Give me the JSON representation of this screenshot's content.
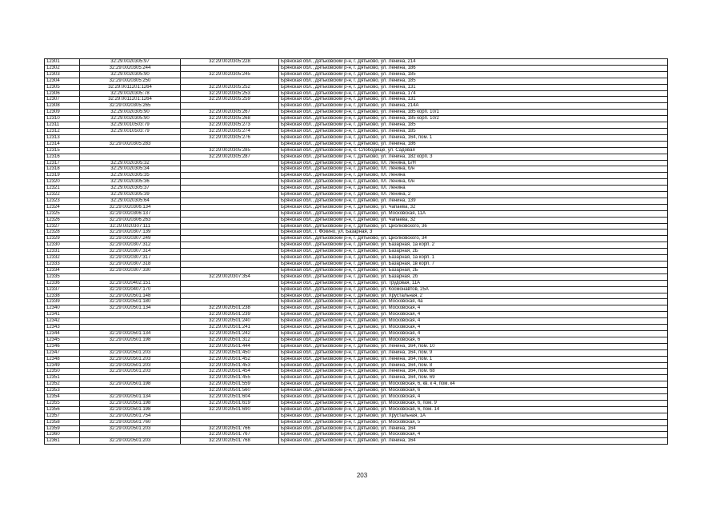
{
  "page_number": "203",
  "rows": [
    [
      "12301",
      "32:29:0020305:97",
      "32:29:0020305:228",
      "Брянская обл., Дятьковский р-н, г. Дятьково, ул. Ленина, 214"
    ],
    [
      "12302",
      "32:29:0020305:244",
      "",
      "Брянская обл., Дятьковский р-н, г. Дятьково, ул. Ленина, 186"
    ],
    [
      "12303",
      "32:29:0020305:90",
      "32:29:0020305:245",
      "Брянская обл., Дятьковский р-н, г. Дятьково, ул. Ленина, 185"
    ],
    [
      "12304",
      "32:29:0020305:250",
      "",
      "Брянская обл., Дятьковский р-н, г. Дятьково, ул. Ленина, 185"
    ],
    [
      "12305",
      "32:29:0011201:1264",
      "32:29:0020305:252",
      "Брянская обл., Дятьковский р-н, г. Дятьково, ул. Ленина, 131"
    ],
    [
      "12306",
      "32:29:0020305:78",
      "32:29:0020305:253",
      "Брянская обл., Дятьковский р-н, г. Дятьково, ул. Ленина, 174"
    ],
    [
      "12307",
      "32:29:0011201:1264",
      "32:29:0020305:259",
      "Брянская обл., Дятьковский р-н, г. Дятьково, ул. Ленина, 131"
    ],
    [
      "12308",
      "32:29:0020305:265",
      "",
      "Брянская обл., Дятьковский р-н, г. Дятьково, ул. Ленина, 214А"
    ],
    [
      "12309",
      "32:29:0020305:90",
      "32:29:0020305:267",
      "Брянская обл., Дятьковский р-н, г. Дятьково, ул. Ленина, 185 корп. 10/1"
    ],
    [
      "12310",
      "32:29:0020305:90",
      "32:29:0020305:268",
      "Брянская обл., Дятьковский р-н, г. Дятьково, ул. Ленина, 185 корп. 10/2"
    ],
    [
      "12311",
      "32:29:0010503:79",
      "32:29:0020305:273",
      "Брянская обл., Дятьковский р-н, г. Дятьково, ул. Ленина, 185"
    ],
    [
      "12312",
      "32:29:0010503:79",
      "32:29:0020305:274",
      "Брянская обл., Дятьковский р-н, г. Дятьково, ул. Ленина, 185"
    ],
    [
      "12313",
      "",
      "32:29:0020305:276",
      "Брянская обл., Дятьковский р-н, г. Дятьково, ул. Ленина, 164, пом. 1"
    ],
    [
      "12314",
      "32:29:0020305:283",
      "",
      "Брянская обл., Дятьковский р-н, г. Дятьково, ул. Ленина, 186"
    ],
    [
      "12315",
      "",
      "32:29:0020305:285",
      "Брянская обл., Дятьковский р-н, с. Слободище, ул. Садовая"
    ],
    [
      "12316",
      "",
      "32:29:0020305:287",
      "Брянская обл., Дятьковский р-н, г. Дятьково, ул. Ленина, 182 корп. 3"
    ],
    [
      "12317",
      "32:29:0020305:32",
      "",
      "Брянская обл., Дятьковский р-н, г. Дятьково, пл. Ленина, Б/Н"
    ],
    [
      "12318",
      "32:29:0020305:34",
      "",
      "Брянская обл., Дятьковский р-н, г. Дятьково, пл. Ленина, б/н"
    ],
    [
      "12319",
      "32:29:0020305:35",
      "",
      "Брянская обл., Дятьковский р-н, г. Дятьково, пл. Ленина"
    ],
    [
      "12320",
      "32:29:0020305:36",
      "",
      "Брянская обл., Дятьковский р-н, г. Дятьково, пл. Ленина, б/н"
    ],
    [
      "12321",
      "32:29:0020305:37",
      "",
      "Брянская обл., Дятьковский р-н, г. Дятьково, пл. Ленина"
    ],
    [
      "12322",
      "32:29:0020305:39",
      "",
      "Брянская обл., Дятьковский р-н, г. Дятьково, пл. Ленина, 2"
    ],
    [
      "12323",
      "32:29:0020305:64",
      "",
      "Брянская обл., Дятьковский р-н, г. Дятьково, ул. Ленина, 139"
    ],
    [
      "12324",
      "32:29:0020306:134",
      "",
      "Брянская обл., Дятьковский р-н, г. Дятьково, ул. Чапаева, 32"
    ],
    [
      "12325",
      "32:29:0020306:137",
      "",
      "Брянская обл., Дятьковский р-н, г. Дятьково, ул. Московская, 11А"
    ],
    [
      "12326",
      "32:29:0020306:263",
      "",
      "Брянская обл., Дятьковский р-н, г. Дятьково, ул. Чапаева, 32"
    ],
    [
      "12327",
      "32:29:0020307:111",
      "",
      "Брянская обл., Дятьковский р-н, г. Дятьково, ул. Циолковского, 36"
    ],
    [
      "12328",
      "32:29:0020307:139",
      "",
      "Брянская обл., г. Фокино, ул. Базарная, 3"
    ],
    [
      "12329",
      "32:29:0020307:249",
      "",
      "Брянская обл., Дятьковский р-н, г. Дятьково, ул. Циолковского, 34"
    ],
    [
      "12330",
      "32:29:0020307:312",
      "",
      "Брянская обл., Дятьковский р-н, г. Дятьково, ул. Базарная, 1а корп. 2"
    ],
    [
      "12331",
      "32:29:0020307:314",
      "",
      "Брянская обл., Дятьковский р-н, г. Дятьково, ул. Базарная, 2Б"
    ],
    [
      "12332",
      "32:29:0020307:317",
      "",
      "Брянская обл., Дятьковский р-н, г. Дятьково, ул. Базарная, 1а корп. 1"
    ],
    [
      "12333",
      "32:29:0020307:318",
      "",
      "Брянская обл., Дятьковский р-н, г. Дятьково, ул. Базарная, 1в корп. 7"
    ],
    [
      "12334",
      "32:29:0020307:330",
      "",
      "Брянская обл., Дятьковский р-н, г. Дятьково, ул. Базарная, 2Б"
    ],
    [
      "12335",
      "",
      "32:29:0020307:354",
      "Брянская обл., Дятьковский р-н, г. Дятьково, ул. Базарная, 2б"
    ],
    [
      "12336",
      "32:29:0020402:151",
      "",
      "Брянская обл., Дятьковский р-н, г. Дятьково, ул. Трудовая, 11А"
    ],
    [
      "12337",
      "32:29:0020407:170",
      "",
      "Брянская обл., Дятьковский р-н, г. Дятьково, ул. Космонавтов, 25А"
    ],
    [
      "12338",
      "32:29:0020501:148",
      "",
      "Брянская обл., Дятьковский р-н, г. Дятьково, ул. Хрустальная, 2"
    ],
    [
      "12339",
      "32:29:0020501:180",
      "",
      "Брянская обл., Дятьковский р-н, г. Дятьково, ул. Московская, 4а"
    ],
    [
      "12340",
      "32:29:0020501:134",
      "32:29:0020501:238",
      "Брянская обл., Дятьковский р-н, г. Дятьково, ул. Московская, 4"
    ],
    [
      "12341",
      "",
      "32:29:0020501:239",
      "Брянская обл., Дятьковский р-н, г. Дятьково, ул. Московская, 4"
    ],
    [
      "12342",
      "",
      "32:29:0020501:240",
      "Брянская обл., Дятьковский р-н, г. Дятьково, ул. Московская, 4"
    ],
    [
      "12343",
      "",
      "32:29:0020501:241",
      "Брянская обл., Дятьковский р-н, г. Дятьково, ул. Московская, 4"
    ],
    [
      "12344",
      "32:29:0020501:134",
      "32:29:0020501:242",
      "Брянская обл., Дятьковский р-н, г. Дятьково, ул. Московская, 4"
    ],
    [
      "12345",
      "32:29:0020501:198",
      "32:29:0020501:312",
      "Брянская обл., Дятьковский р-н, г. Дятьково, ул. Московская, 6"
    ],
    [
      "12346",
      "",
      "32:29:0020501:444",
      "Брянская обл., Дятьковский р-н, г. Дятьково, ул. Ленина, 164, пом. 10"
    ],
    [
      "12347",
      "32:29:0020501:203",
      "32:29:0020501:450",
      "Брянская обл., Дятьковский р-н, г. Дятьково, ул. Ленина, 164, пом. 9"
    ],
    [
      "12348",
      "32:29:0020501:203",
      "32:29:0020501:452",
      "Брянская обл., Дятьковский р-н, г. Дятьково, ул. Ленина, 164, пом. 1"
    ],
    [
      "12349",
      "32:29:0020501:203",
      "32:29:0020501:453",
      "Брянская обл., Дятьковский р-н, г. Дятьково, ул. Ленина, 164, пом. 8"
    ],
    [
      "12350",
      "32:29:0020501:203",
      "32:29:0020501:454",
      "Брянская обл., Дятьковский р-н, г. Дятьково, ул. Ленина, 164, пом. 68"
    ],
    [
      "12351",
      "",
      "32:29:0020501:455",
      "Брянская обл., Дятьковский р-н, г. Дятьково, ул. Ленина, 164, пом. 69"
    ],
    [
      "12352",
      "32:29:0020501:198",
      "32:29:0020501:559",
      "Брянская обл., Дятьковский р-н, г. Дятьково, ул. Московская, 6, кв. к 4, пом. к4"
    ],
    [
      "12353",
      "",
      "32:29:0020501:560",
      "Брянская обл., Дятьковский р-н, г. Дятьково, ул. Московская, 6"
    ],
    [
      "12354",
      "32:29:0020501:134",
      "32:29:0020501:604",
      "Брянская обл., Дятьковский р-н, г. Дятьково, ул. Московская, 4"
    ],
    [
      "12355",
      "32:29:0020501:198",
      "32:29:0020501:619",
      "Брянская обл., Дятьковский р-н, г. Дятьково, ул. Московская, 6, пом. 9"
    ],
    [
      "12356",
      "32:29:0020501:198",
      "32:29:0020501:690",
      "Брянская обл., Дятьковский р-н, г. Дятьково, ул. Московская, 6, пом. 14"
    ],
    [
      "12357",
      "32:29:0020501:754",
      "",
      "Брянская обл., Дятьковский р-н, г. Дятьково, ул. Хрустальная, 1А"
    ],
    [
      "12358",
      "32:29:0020501:760",
      "",
      "Брянская обл., Дятьковский р-н, г. Дятьково, ул. Московская, 5"
    ],
    [
      "12359",
      "32:29:0020501:203",
      "32:29:0020501:766",
      "Брянская обл., Дятьковский р-н, г. Дятьково, ул. Ленина, 164"
    ],
    [
      "12360",
      "",
      "32:29:0020501:767",
      "Брянская обл., Дятьковский р-н, г. Дятьково, ул. Московская, 4"
    ],
    [
      "12361",
      "32:29:0020501:203",
      "32:29:0020501:768",
      "Брянская обл., Дятьковский р-н, г. Дятьково, ул. Ленина, 164"
    ]
  ]
}
